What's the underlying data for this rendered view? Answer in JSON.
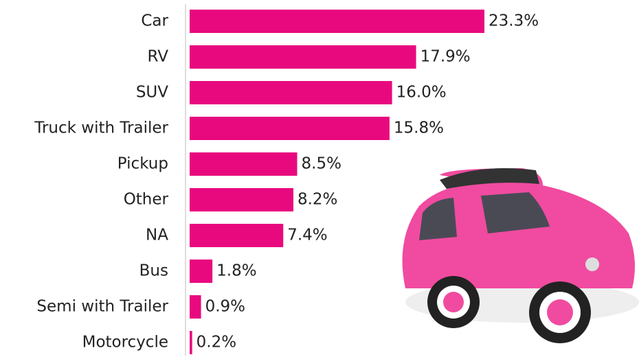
{
  "chart_data": {
    "type": "bar",
    "orientation": "horizontal",
    "categories": [
      "Car",
      "RV",
      "SUV",
      "Truck with Trailer",
      "Pickup",
      "Other",
      "NA",
      "Bus",
      "Semi with Trailer",
      "Motorcycle"
    ],
    "values": [
      23.3,
      17.9,
      16.0,
      15.8,
      8.5,
      8.2,
      7.4,
      1.8,
      0.9,
      0.2
    ],
    "value_labels": [
      "23.3%",
      "17.9%",
      "16.0%",
      "15.8%",
      "8.5%",
      "8.2%",
      "7.4%",
      "1.8%",
      "0.9%",
      "0.2%"
    ],
    "color": "#e8097f"
  }
}
